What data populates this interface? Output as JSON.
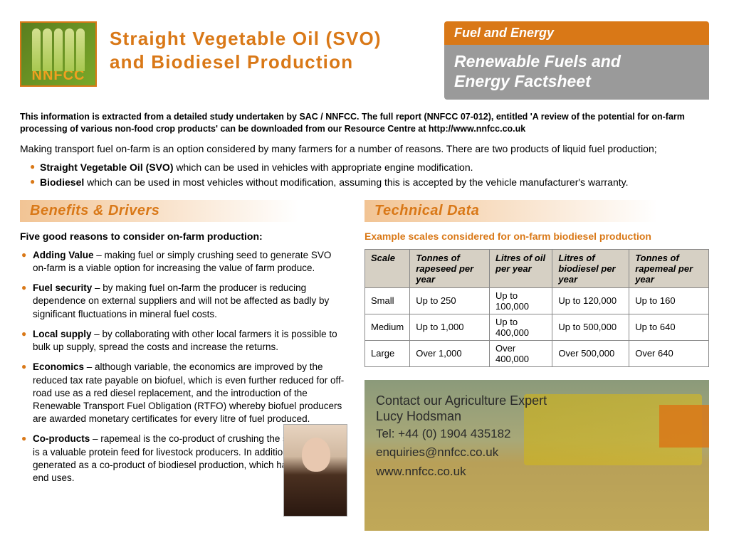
{
  "logo_text": "NNFCC",
  "main_title_l1": "Straight Vegetable Oil (SVO)",
  "main_title_l2": "and Biodiesel Production",
  "header_bar1": "Fuel and Energy",
  "header_bar2_l1": "Renewable Fuels and",
  "header_bar2_l2": "Energy Factsheet",
  "intro_note": "This information is extracted from a detailed study undertaken by SAC / NNFCC. The full report (NNFCC 07-012), entitled 'A review of the potential for on-farm processing of various non-food crop products' can be downloaded from our Resource Centre at http://www.nnfcc.co.uk",
  "intro_para": "Making transport fuel on-farm is an option considered by many farmers for a number of reasons. There are two products of liquid fuel production;",
  "intro_list": [
    {
      "bold": "Straight Vegetable Oil (SVO)",
      "rest": " which can be used in vehicles with appropriate engine modification."
    },
    {
      "bold": "Biodiesel",
      "rest": " which can be used in most vehicles without modification, assuming this is accepted by the vehicle manufacturer's warranty."
    }
  ],
  "benefits_heading": "Benefits & Drivers",
  "five_reasons": "Five good reasons to consider on-farm production:",
  "benefits": [
    {
      "bold": "Adding Value",
      "rest": " – making fuel or simply crushing seed to generate SVO on-farm is a viable option for increasing the value of farm produce."
    },
    {
      "bold": "Fuel security",
      "rest": " – by making fuel on-farm the producer is reducing dependence on external suppliers and will not be affected as badly by significant fluctuations in mineral fuel costs."
    },
    {
      "bold": "Local supply",
      "rest": " – by collaborating with other local farmers it is possible to bulk up supply, spread the costs and increase the returns."
    },
    {
      "bold": "Economics",
      "rest": " – although variable, the economics are improved by the reduced tax rate payable on biofuel, which is even further reduced for off-road use as a red diesel replacement, and the introduction of the Renewable Transport Fuel Obligation (RTFO) whereby biofuel producers are awarded monetary certificates for every litre of fuel produced."
    },
    {
      "bold": "Co-products",
      "rest": " – rapemeal is the co-product of crushing the seed, this meal is a valuable protein feed for livestock producers. In addition glycerine is generated as a co-product of biodiesel production, which has a number of end uses."
    }
  ],
  "tech_heading": "Technical Data",
  "tech_caption": "Example scales considered for on-farm biodiesel production",
  "table": {
    "columns": [
      "Scale",
      "Tonnes of rapeseed per year",
      "Litres of oil per year",
      "Litres of biodiesel per year",
      "Tonnes of rapemeal per year"
    ],
    "rows": [
      [
        "Small",
        "Up to 250",
        "Up to 100,000",
        "Up to 120,000",
        "Up to 160"
      ],
      [
        "Medium",
        "Up to 1,000",
        "Up to 400,000",
        "Up to 500,000",
        "Up to 640"
      ],
      [
        "Large",
        "Over 1,000",
        "Over 400,000",
        "Over 500,000",
        "Over 640"
      ]
    ]
  },
  "contact": {
    "heading_l1": "Contact our Agriculture Expert",
    "heading_l2": "Lucy Hodsman",
    "tel": "Tel: +44 (0) 1904 435182",
    "email": "enquiries@nnfcc.co.uk",
    "web": "www.nnfcc.co.uk"
  }
}
